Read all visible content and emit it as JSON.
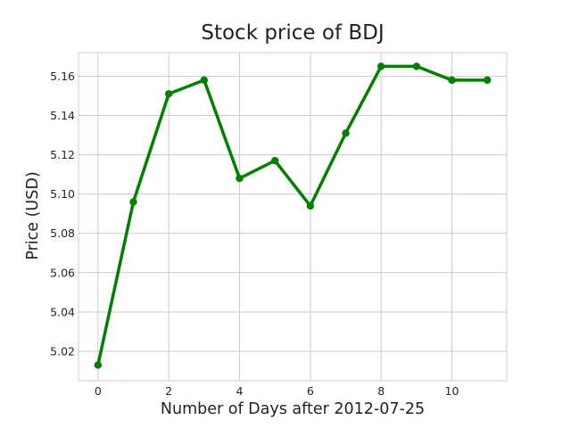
{
  "chart_data": {
    "type": "line",
    "title": "Stock price of BDJ",
    "xlabel": "Number of Days after 2012-07-25",
    "ylabel": "Price (USD)",
    "x": [
      0,
      1,
      2,
      3,
      4,
      5,
      6,
      7,
      8,
      9,
      10,
      11
    ],
    "series": [
      {
        "values": [
          5.013,
          5.096,
          5.151,
          5.158,
          5.108,
          5.117,
          5.094,
          5.131,
          5.165,
          5.165,
          5.158,
          5.158
        ],
        "color": "#008000",
        "marker": "circle"
      }
    ],
    "xlim": [
      -0.55,
      11.55
    ],
    "ylim": [
      5.005,
      5.172
    ],
    "xticks": [
      0,
      2,
      4,
      6,
      8,
      10
    ],
    "yticks": [
      5.02,
      5.04,
      5.06,
      5.08,
      5.1,
      5.12,
      5.14,
      5.16
    ],
    "xtick_labels": [
      "0",
      "2",
      "4",
      "6",
      "8",
      "10"
    ],
    "ytick_labels": [
      "5.02",
      "5.04",
      "5.06",
      "5.08",
      "5.10",
      "5.12",
      "5.14",
      "5.16"
    ],
    "grid": true,
    "legend": "none"
  }
}
